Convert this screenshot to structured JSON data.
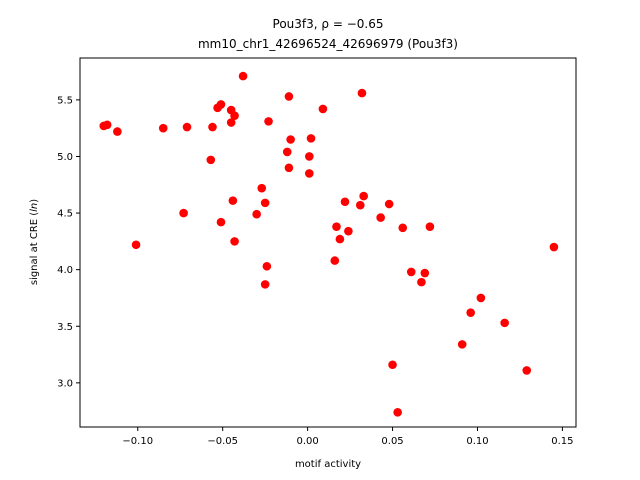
{
  "chart_data": {
    "type": "scatter",
    "title_line1": "Pou3f3, ρ = −0.65",
    "title_line2": "mm10_chr1_42696524_42696979 (Pou3f3)",
    "xlabel": "motif activity",
    "ylabel": "signal at CRE (ln)",
    "xlim": [
      -0.134,
      0.158
    ],
    "ylim": [
      2.61,
      5.87
    ],
    "xticks": [
      -0.1,
      -0.05,
      0.0,
      0.05,
      0.1,
      0.15
    ],
    "xtick_labels": [
      "−0.10",
      "−0.05",
      "0.00",
      "0.05",
      "0.10",
      "0.15"
    ],
    "yticks": [
      3.0,
      3.5,
      4.0,
      4.5,
      5.0,
      5.5
    ],
    "ytick_labels": [
      "3.0",
      "3.5",
      "4.0",
      "4.5",
      "5.0",
      "5.5"
    ],
    "grid": false,
    "marker_color": "#ff0000",
    "points": [
      {
        "x": -0.12,
        "y": 5.27
      },
      {
        "x": -0.118,
        "y": 5.28
      },
      {
        "x": -0.112,
        "y": 5.22
      },
      {
        "x": -0.101,
        "y": 4.22
      },
      {
        "x": -0.085,
        "y": 5.25
      },
      {
        "x": -0.073,
        "y": 4.5
      },
      {
        "x": -0.071,
        "y": 5.26
      },
      {
        "x": -0.057,
        "y": 4.97
      },
      {
        "x": -0.056,
        "y": 5.26
      },
      {
        "x": -0.053,
        "y": 5.43
      },
      {
        "x": -0.051,
        "y": 5.46
      },
      {
        "x": -0.051,
        "y": 4.42
      },
      {
        "x": -0.045,
        "y": 5.41
      },
      {
        "x": -0.045,
        "y": 5.3
      },
      {
        "x": -0.043,
        "y": 5.36
      },
      {
        "x": -0.044,
        "y": 4.61
      },
      {
        "x": -0.043,
        "y": 4.25
      },
      {
        "x": -0.038,
        "y": 5.71
      },
      {
        "x": -0.03,
        "y": 4.49
      },
      {
        "x": -0.027,
        "y": 4.72
      },
      {
        "x": -0.025,
        "y": 4.59
      },
      {
        "x": -0.025,
        "y": 3.87
      },
      {
        "x": -0.024,
        "y": 4.03
      },
      {
        "x": -0.023,
        "y": 5.31
      },
      {
        "x": -0.012,
        "y": 5.04
      },
      {
        "x": -0.011,
        "y": 5.53
      },
      {
        "x": -0.011,
        "y": 4.9
      },
      {
        "x": -0.01,
        "y": 5.15
      },
      {
        "x": 0.001,
        "y": 5.0
      },
      {
        "x": 0.001,
        "y": 4.85
      },
      {
        "x": 0.002,
        "y": 5.16
      },
      {
        "x": 0.009,
        "y": 5.42
      },
      {
        "x": 0.016,
        "y": 4.08
      },
      {
        "x": 0.017,
        "y": 4.38
      },
      {
        "x": 0.019,
        "y": 4.27
      },
      {
        "x": 0.022,
        "y": 4.6
      },
      {
        "x": 0.024,
        "y": 4.34
      },
      {
        "x": 0.031,
        "y": 4.57
      },
      {
        "x": 0.032,
        "y": 5.56
      },
      {
        "x": 0.033,
        "y": 4.65
      },
      {
        "x": 0.043,
        "y": 4.46
      },
      {
        "x": 0.048,
        "y": 4.58
      },
      {
        "x": 0.05,
        "y": 3.16
      },
      {
        "x": 0.053,
        "y": 2.74
      },
      {
        "x": 0.056,
        "y": 4.37
      },
      {
        "x": 0.061,
        "y": 3.98
      },
      {
        "x": 0.067,
        "y": 3.89
      },
      {
        "x": 0.069,
        "y": 3.97
      },
      {
        "x": 0.072,
        "y": 4.38
      },
      {
        "x": 0.091,
        "y": 3.34
      },
      {
        "x": 0.096,
        "y": 3.62
      },
      {
        "x": 0.102,
        "y": 3.75
      },
      {
        "x": 0.116,
        "y": 3.53
      },
      {
        "x": 0.129,
        "y": 3.11
      },
      {
        "x": 0.145,
        "y": 4.2
      }
    ]
  }
}
